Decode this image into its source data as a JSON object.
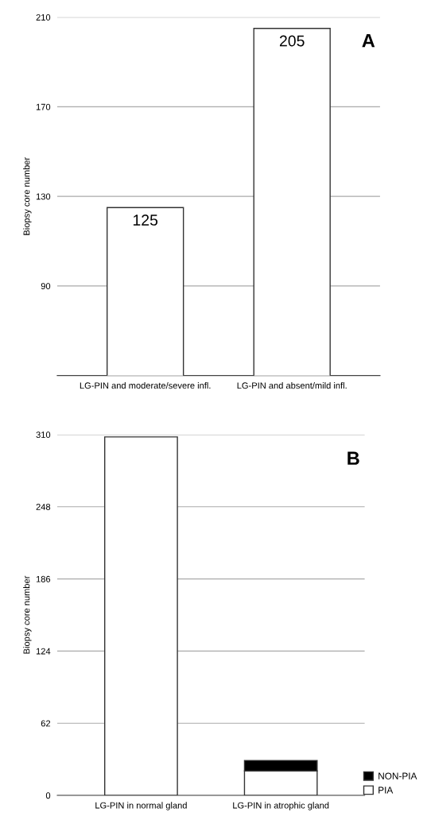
{
  "chart_data": [
    {
      "type": "bar",
      "ylabel": "Biopsy core number",
      "categories": [
        "LG-PIN and moderate/severe infl.",
        "LG-PIN and absent/mild infl."
      ],
      "values": [
        125,
        205
      ],
      "color": "#ffffff",
      "ylim": [
        50,
        210
      ],
      "yticks": [
        90,
        130,
        170,
        210
      ],
      "grid": "y",
      "data_labels": true,
      "annotations": [
        "A"
      ]
    },
    {
      "type": "bar",
      "ylabel": "Biopsy core number",
      "categories": [
        "LG-PIN in normal gland",
        "LG-PIN in atrophic gland"
      ],
      "stacked": true,
      "series": [
        {
          "name": "PIA",
          "color": "#ffffff",
          "values": [
            308,
            21
          ]
        },
        {
          "name": "NON-PIA",
          "color": "#000000",
          "values": [
            0,
            9
          ]
        }
      ],
      "ylim": [
        0,
        310
      ],
      "yticks": [
        0,
        62,
        124,
        186,
        248,
        310
      ],
      "grid": "y",
      "legend": "bottom right",
      "annotations": [
        "B"
      ]
    }
  ]
}
